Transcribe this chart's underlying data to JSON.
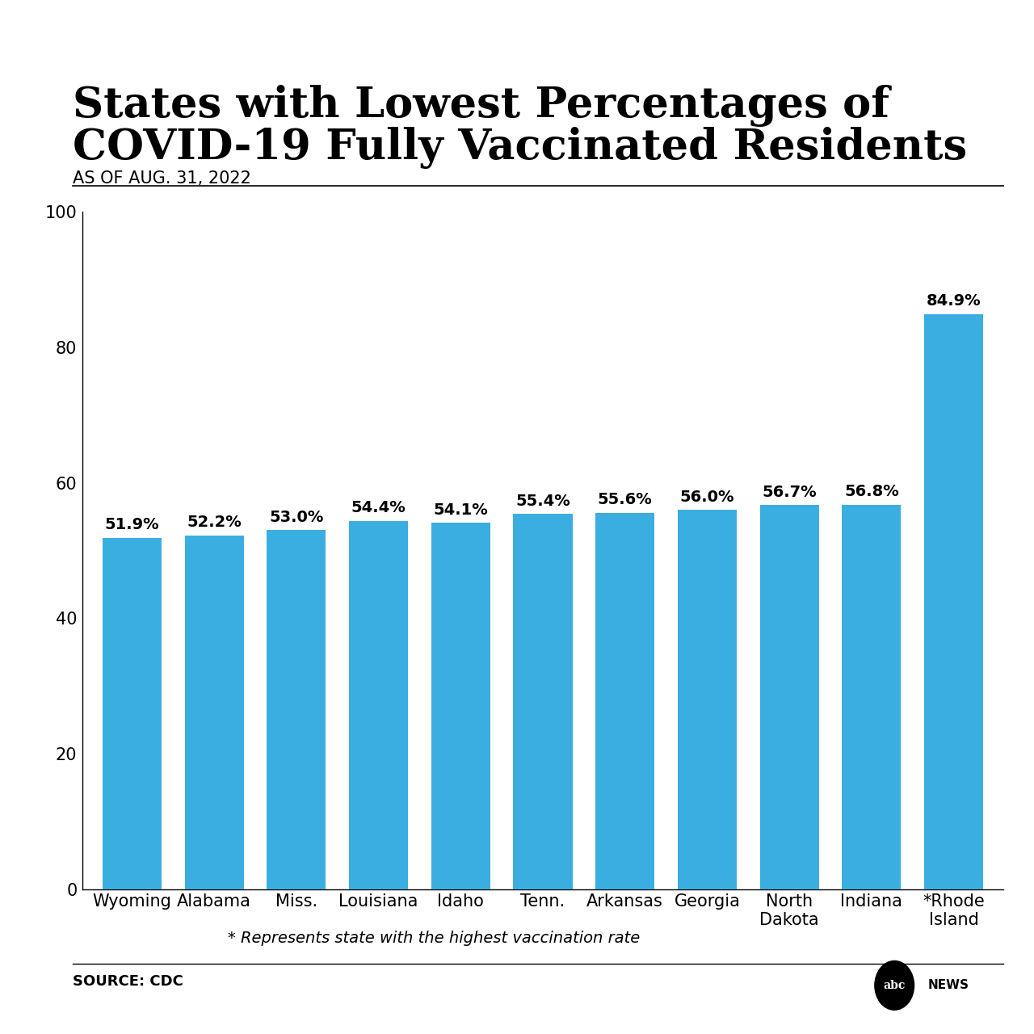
{
  "title_line1": "States with Lowest Percentages of",
  "title_line2": "COVID-19 Fully Vaccinated Residents",
  "subtitle": "AS OF AUG. 31, 2022",
  "categories": [
    "Wyoming",
    "Alabama",
    "Miss.",
    "Louisiana",
    "Idaho",
    "Tenn.",
    "Arkansas",
    "Georgia",
    "North\nDakota",
    "Indiana",
    "*Rhode\nIsland"
  ],
  "values": [
    51.9,
    52.2,
    53.0,
    54.4,
    54.1,
    55.4,
    55.6,
    56.0,
    56.7,
    56.8,
    84.9
  ],
  "labels": [
    "51.9%",
    "52.2%",
    "53.0%",
    "54.4%",
    "54.1%",
    "55.4%",
    "55.6%",
    "56.0%",
    "56.7%",
    "56.8%",
    "84.9%"
  ],
  "bar_color": "#3aaee0",
  "background_color": "#ffffff",
  "ylim": [
    0,
    100
  ],
  "yticks": [
    0,
    20,
    40,
    60,
    80,
    100
  ],
  "footnote": "* Represents state with the highest vaccination rate",
  "source": "SOURCE: CDC",
  "title_fontsize": 38,
  "subtitle_fontsize": 15,
  "label_fontsize": 14,
  "tick_fontsize": 15,
  "footnote_fontsize": 14,
  "source_fontsize": 13
}
